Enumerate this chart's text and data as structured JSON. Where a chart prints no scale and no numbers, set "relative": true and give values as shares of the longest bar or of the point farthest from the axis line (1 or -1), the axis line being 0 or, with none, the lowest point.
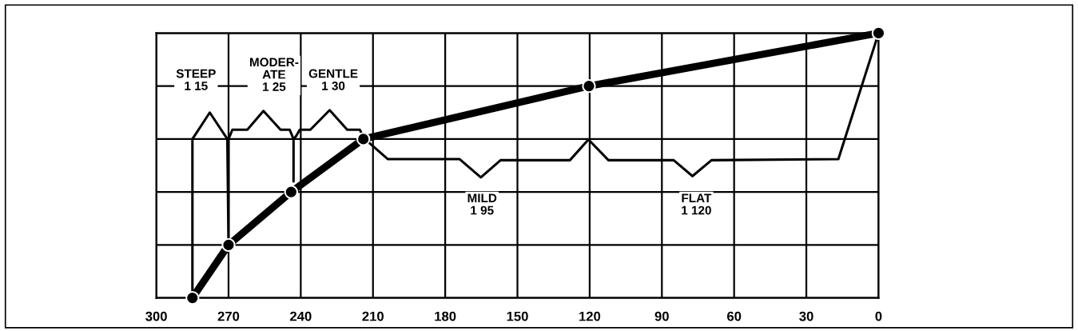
{
  "chart_data": {
    "type": "line",
    "relative": true,
    "xlim": [
      300,
      0
    ],
    "xticks": [
      300,
      270,
      240,
      210,
      180,
      150,
      120,
      90,
      60,
      30,
      0
    ],
    "tick_labels": "x",
    "grid": true,
    "series": [
      {
        "color": "#000000",
        "x": [
          285,
          285,
          277.8,
          270.5,
          270,
          270,
          268.4,
          262.2,
          255.5,
          248.4,
          244.6,
          243,
          243,
          243,
          242,
          240.4,
          236,
          228,
          220.7,
          215.5,
          213.4,
          203.8,
          174,
          165.2,
          157,
          128.2,
          120.5,
          112.2,
          85.1,
          77.3,
          69.4,
          16.7,
          0
        ],
        "values": [
          0,
          0.6,
          0.7,
          0.6,
          0.2,
          0.6,
          0.635,
          0.635,
          0.706,
          0.635,
          0.635,
          0.6,
          0.44,
          0.6,
          0.61,
          0.635,
          0.635,
          0.709,
          0.635,
          0.635,
          0.6,
          0.524,
          0.524,
          0.455,
          0.52,
          0.52,
          0.598,
          0.52,
          0.52,
          0.46,
          0.52,
          0.524,
          1.0
        ]
      },
      {
        "color": "#000000",
        "x": [
          285,
          270,
          244,
          214,
          120.3,
          0
        ],
        "values": [
          0,
          0.2,
          0.4,
          0.6,
          0.8,
          1.0
        ],
        "marker": "circle"
      }
    ],
    "annotations": [
      "STEEP\n1 15",
      "MODER-\nATE\n1 25",
      "GENTLE\n1 30",
      {
        "text": "MILD\n1 95",
        "x": 164.7,
        "y": 0.35
      },
      {
        "text": "FLAT\n1 120",
        "x": 75.7,
        "y": 0.35
      }
    ]
  }
}
